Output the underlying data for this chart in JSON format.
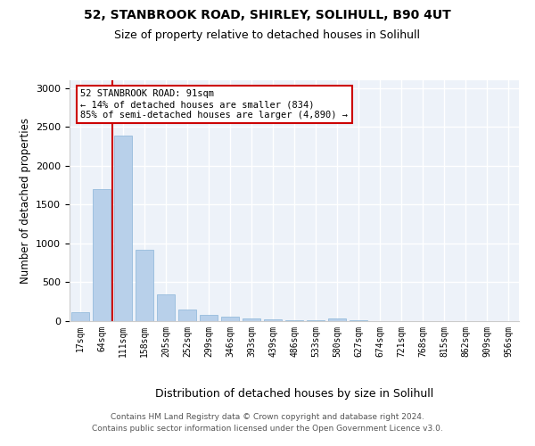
{
  "title1": "52, STANBROOK ROAD, SHIRLEY, SOLIHULL, B90 4UT",
  "title2": "Size of property relative to detached houses in Solihull",
  "xlabel": "Distribution of detached houses by size in Solihull",
  "ylabel": "Number of detached properties",
  "categories": [
    "17sqm",
    "64sqm",
    "111sqm",
    "158sqm",
    "205sqm",
    "252sqm",
    "299sqm",
    "346sqm",
    "393sqm",
    "439sqm",
    "486sqm",
    "533sqm",
    "580sqm",
    "627sqm",
    "674sqm",
    "721sqm",
    "768sqm",
    "815sqm",
    "862sqm",
    "909sqm",
    "956sqm"
  ],
  "values": [
    120,
    1700,
    2390,
    920,
    350,
    150,
    80,
    55,
    35,
    20,
    15,
    10,
    30,
    8,
    5,
    3,
    2,
    2,
    1,
    1,
    1
  ],
  "bar_color": "#b8d0ea",
  "bar_edge_color": "#8ab4d8",
  "vline_color": "#cc0000",
  "vline_x": 1.5,
  "annotation_text": "52 STANBROOK ROAD: 91sqm\n← 14% of detached houses are smaller (834)\n85% of semi-detached houses are larger (4,890) →",
  "ylim": [
    0,
    3100
  ],
  "yticks": [
    0,
    500,
    1000,
    1500,
    2000,
    2500,
    3000
  ],
  "bg_color": "#edf2f9",
  "grid_color": "#ffffff",
  "footer1": "Contains HM Land Registry data © Crown copyright and database right 2024.",
  "footer2": "Contains public sector information licensed under the Open Government Licence v3.0."
}
